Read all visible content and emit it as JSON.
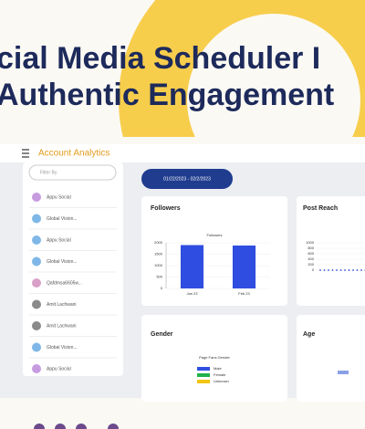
{
  "header": {
    "title_lines": [
      "cial Media Scheduler I",
      "Authentic Engagement"
    ]
  },
  "app": {
    "title": "Account Analytics",
    "filter_placeholder": "Filter By",
    "date_range": "01/22/2023 - 02/2/2023",
    "accounts": [
      "Appu Social",
      "Global Vision...",
      "Appu Social",
      "Global Vision...",
      "Qafdmsa6605w...",
      "Amit Lachwani",
      "Amit Lachwani",
      "Global Vision...",
      "Appu Social"
    ]
  },
  "followers": {
    "title": "Followers",
    "chart_title": "Followers",
    "categories": [
      "Jan 23",
      "Feb 23"
    ],
    "values": [
      1900,
      1880
    ],
    "ylim": [
      0,
      2000
    ],
    "yticks": [
      0,
      500,
      1000,
      1500,
      2000
    ],
    "color": "#2f4de0"
  },
  "post_reach": {
    "title": "Post Reach",
    "ylim": [
      0,
      1000
    ],
    "yticks": [
      0,
      200,
      400,
      600,
      800,
      1000
    ]
  },
  "gender": {
    "title": "Gender",
    "chart_title": "Page Fans Gender",
    "legend": [
      {
        "name": "Male",
        "color": "#2f4de0"
      },
      {
        "name": "Female",
        "color": "#22b14c"
      },
      {
        "name": "Unknown",
        "color": "#f2c511"
      }
    ]
  },
  "age": {
    "title": "Age"
  }
}
